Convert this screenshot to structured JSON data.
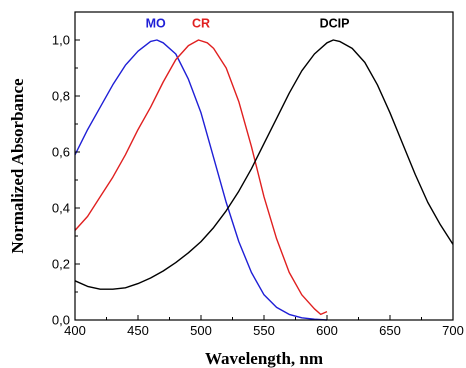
{
  "chart_data": {
    "type": "line",
    "title": "",
    "xlabel": "Wavelength, nm",
    "ylabel": "Normalized Absorbance",
    "xlim": [
      400,
      700
    ],
    "ylim": [
      0,
      1.1
    ],
    "grid": false,
    "x_ticks": [
      400,
      450,
      500,
      550,
      600,
      650,
      700
    ],
    "x_tick_labels": [
      "400",
      "450",
      "500",
      "550",
      "600",
      "650",
      "700"
    ],
    "y_ticks": [
      0,
      0.2,
      0.4,
      0.6,
      0.8,
      1.0
    ],
    "y_tick_labels": [
      "0,0",
      "0,2",
      "0,4",
      "0,6",
      "0,8",
      "1,0"
    ],
    "series": [
      {
        "name": "MO",
        "color": "#1f1fd6",
        "x": [
          400,
          410,
          420,
          430,
          440,
          450,
          460,
          465,
          470,
          480,
          490,
          500,
          510,
          520,
          530,
          540,
          550,
          560,
          570,
          580,
          590,
          600
        ],
        "y": [
          0.59,
          0.68,
          0.76,
          0.84,
          0.91,
          0.96,
          0.995,
          1.0,
          0.99,
          0.95,
          0.86,
          0.74,
          0.58,
          0.42,
          0.28,
          0.17,
          0.09,
          0.045,
          0.02,
          0.008,
          0.003,
          0.0
        ]
      },
      {
        "name": "CR",
        "color": "#e02020",
        "x": [
          400,
          410,
          420,
          430,
          440,
          450,
          460,
          470,
          480,
          490,
          498,
          505,
          510,
          520,
          530,
          540,
          550,
          560,
          570,
          580,
          590,
          595,
          600
        ],
        "y": [
          0.32,
          0.37,
          0.44,
          0.51,
          0.59,
          0.68,
          0.76,
          0.85,
          0.93,
          0.98,
          1.0,
          0.99,
          0.97,
          0.9,
          0.78,
          0.62,
          0.44,
          0.29,
          0.17,
          0.09,
          0.04,
          0.02,
          0.03
        ]
      },
      {
        "name": "DCIP",
        "color": "#000000",
        "x": [
          400,
          410,
          420,
          430,
          440,
          450,
          460,
          470,
          480,
          490,
          500,
          510,
          520,
          530,
          540,
          550,
          560,
          570,
          580,
          590,
          600,
          605,
          610,
          620,
          630,
          640,
          650,
          660,
          670,
          680,
          690,
          700
        ],
        "y": [
          0.14,
          0.12,
          0.11,
          0.11,
          0.115,
          0.13,
          0.15,
          0.175,
          0.205,
          0.24,
          0.28,
          0.33,
          0.39,
          0.46,
          0.54,
          0.63,
          0.72,
          0.81,
          0.89,
          0.95,
          0.99,
          1.0,
          0.995,
          0.97,
          0.92,
          0.84,
          0.74,
          0.63,
          0.52,
          0.42,
          0.34,
          0.27
        ]
      }
    ],
    "annotations": [
      {
        "text": "MO",
        "x": 464,
        "y": 1.045,
        "color": "#1f1fd6"
      },
      {
        "text": "CR",
        "x": 500,
        "y": 1.045,
        "color": "#e02020"
      },
      {
        "text": "DCIP",
        "x": 606,
        "y": 1.045,
        "color": "#000000"
      }
    ]
  }
}
